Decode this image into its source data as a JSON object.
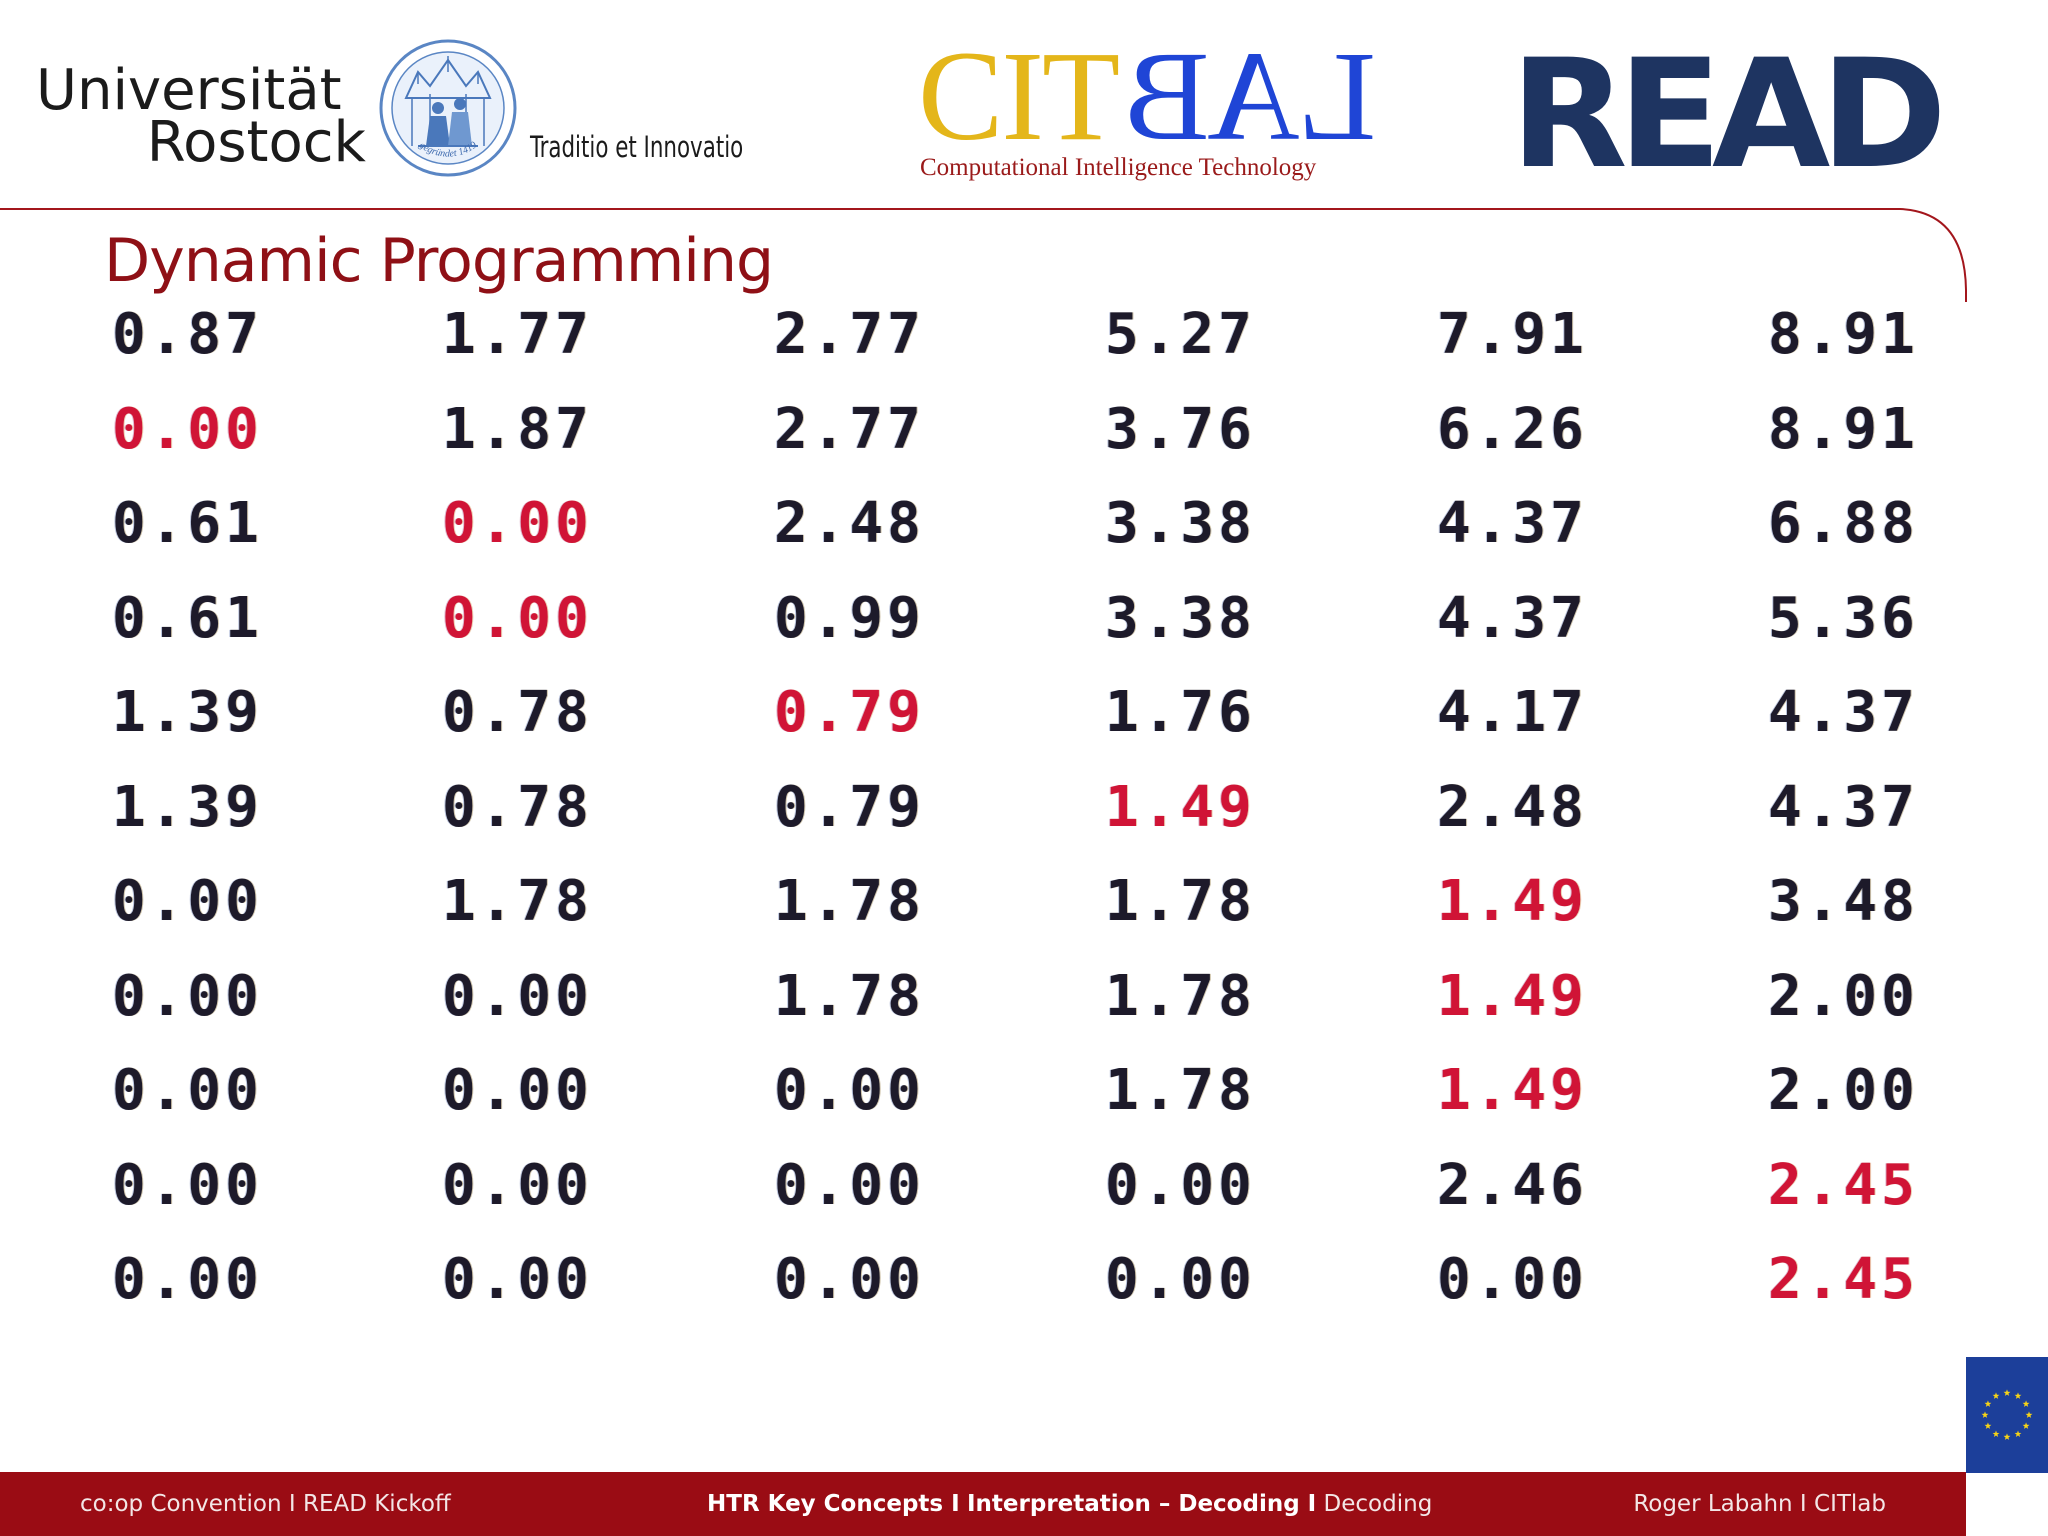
{
  "header": {
    "university": {
      "line1": "Universität",
      "line2": "Rostock",
      "motto": "Traditio et Innovatio",
      "seal_text": "gegründet 1419"
    },
    "citlab": {
      "wordmark_left": "CIT",
      "wordmark_right": "LAB",
      "subtitle": "Computational Intelligence Technology",
      "colors": {
        "cit": "#e4b61a",
        "lab": "#1f45d6",
        "subtitle": "#9a1a1a"
      }
    },
    "read_logo": {
      "text": "READ",
      "color": "#1e3461"
    }
  },
  "title": "Dynamic Programming",
  "colors": {
    "accent": "#8f1016",
    "footer_bg": "#9a0c14",
    "value": "#1d1a2a",
    "highlight": "#d01436",
    "eu_blue": "#1c3f9a",
    "eu_star": "#f7d417"
  },
  "matrix": {
    "rows": [
      [
        {
          "v": "0.87",
          "hl": false
        },
        {
          "v": "1.77",
          "hl": false
        },
        {
          "v": "2.77",
          "hl": false
        },
        {
          "v": "5.27",
          "hl": false
        },
        {
          "v": "7.91",
          "hl": false
        },
        {
          "v": "8.91",
          "hl": false
        }
      ],
      [
        {
          "v": "0.00",
          "hl": true
        },
        {
          "v": "1.87",
          "hl": false
        },
        {
          "v": "2.77",
          "hl": false
        },
        {
          "v": "3.76",
          "hl": false
        },
        {
          "v": "6.26",
          "hl": false
        },
        {
          "v": "8.91",
          "hl": false
        }
      ],
      [
        {
          "v": "0.61",
          "hl": false
        },
        {
          "v": "0.00",
          "hl": true
        },
        {
          "v": "2.48",
          "hl": false
        },
        {
          "v": "3.38",
          "hl": false
        },
        {
          "v": "4.37",
          "hl": false
        },
        {
          "v": "6.88",
          "hl": false
        }
      ],
      [
        {
          "v": "0.61",
          "hl": false
        },
        {
          "v": "0.00",
          "hl": true
        },
        {
          "v": "0.99",
          "hl": false
        },
        {
          "v": "3.38",
          "hl": false
        },
        {
          "v": "4.37",
          "hl": false
        },
        {
          "v": "5.36",
          "hl": false
        }
      ],
      [
        {
          "v": "1.39",
          "hl": false
        },
        {
          "v": "0.78",
          "hl": false
        },
        {
          "v": "0.79",
          "hl": true
        },
        {
          "v": "1.76",
          "hl": false
        },
        {
          "v": "4.17",
          "hl": false
        },
        {
          "v": "4.37",
          "hl": false
        }
      ],
      [
        {
          "v": "1.39",
          "hl": false
        },
        {
          "v": "0.78",
          "hl": false
        },
        {
          "v": "0.79",
          "hl": false
        },
        {
          "v": "1.49",
          "hl": true
        },
        {
          "v": "2.48",
          "hl": false
        },
        {
          "v": "4.37",
          "hl": false
        }
      ],
      [
        {
          "v": "0.00",
          "hl": false
        },
        {
          "v": "1.78",
          "hl": false
        },
        {
          "v": "1.78",
          "hl": false
        },
        {
          "v": "1.78",
          "hl": false
        },
        {
          "v": "1.49",
          "hl": true
        },
        {
          "v": "3.48",
          "hl": false
        }
      ],
      [
        {
          "v": "0.00",
          "hl": false
        },
        {
          "v": "0.00",
          "hl": false
        },
        {
          "v": "1.78",
          "hl": false
        },
        {
          "v": "1.78",
          "hl": false
        },
        {
          "v": "1.49",
          "hl": true
        },
        {
          "v": "2.00",
          "hl": false
        }
      ],
      [
        {
          "v": "0.00",
          "hl": false
        },
        {
          "v": "0.00",
          "hl": false
        },
        {
          "v": "0.00",
          "hl": false
        },
        {
          "v": "1.78",
          "hl": false
        },
        {
          "v": "1.49",
          "hl": true
        },
        {
          "v": "2.00",
          "hl": false
        }
      ],
      [
        {
          "v": "0.00",
          "hl": false
        },
        {
          "v": "0.00",
          "hl": false
        },
        {
          "v": "0.00",
          "hl": false
        },
        {
          "v": "0.00",
          "hl": false
        },
        {
          "v": "2.46",
          "hl": false
        },
        {
          "v": "2.45",
          "hl": true
        }
      ],
      [
        {
          "v": "0.00",
          "hl": false
        },
        {
          "v": "0.00",
          "hl": false
        },
        {
          "v": "0.00",
          "hl": false
        },
        {
          "v": "0.00",
          "hl": false
        },
        {
          "v": "0.00",
          "hl": false
        },
        {
          "v": "2.45",
          "hl": true
        }
      ]
    ]
  },
  "footer": {
    "left": "co:op Convention  I  READ Kickoff",
    "center_bold_1": "HTR Key Concepts  I",
    "center_bold_2": "Interpretation – Decoding  I",
    "center_normal": "Decoding",
    "right": "Roger Labahn  I  CITlab"
  },
  "icons": {
    "uni_seal": "university-seal-icon",
    "eu_flag": "eu-flag-icon"
  }
}
